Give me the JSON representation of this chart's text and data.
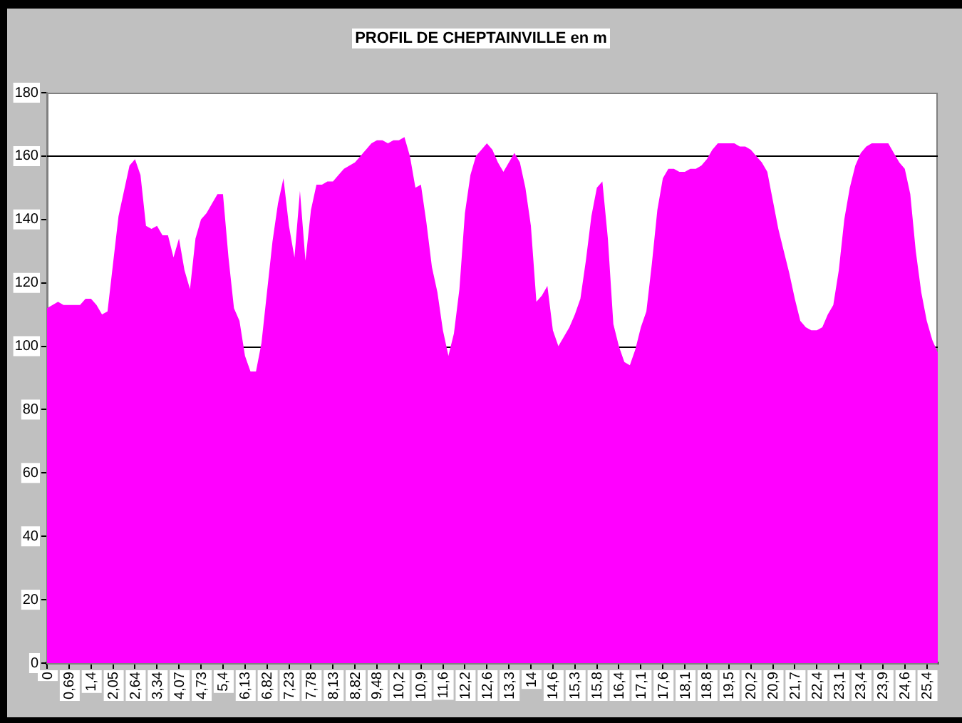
{
  "chart_data": {
    "type": "area",
    "title": "PROFIL DE CHEPTAINVILLE en m",
    "categories": [
      "0",
      null,
      null,
      null,
      "0,69",
      null,
      null,
      null,
      "1,4",
      null,
      null,
      null,
      "2,05",
      null,
      null,
      null,
      "2,64",
      null,
      null,
      null,
      "3,34",
      null,
      null,
      null,
      "4,07",
      null,
      null,
      null,
      "4,73",
      null,
      null,
      null,
      "5,4",
      null,
      null,
      null,
      "6,13",
      null,
      null,
      null,
      "6,82",
      null,
      null,
      null,
      "7,23",
      null,
      null,
      null,
      "7,78",
      null,
      null,
      null,
      "8,13",
      null,
      null,
      null,
      "8,82",
      null,
      null,
      null,
      "9,48",
      null,
      null,
      null,
      "10,2",
      null,
      null,
      null,
      "10,9",
      null,
      null,
      null,
      "11,6",
      null,
      null,
      null,
      "12,2",
      null,
      null,
      null,
      "12,6",
      null,
      null,
      null,
      "13,3",
      null,
      null,
      null,
      "14",
      null,
      null,
      null,
      "14,6",
      null,
      null,
      null,
      "15,3",
      null,
      null,
      null,
      "15,8",
      null,
      null,
      null,
      "16,4",
      null,
      null,
      null,
      "17,1",
      null,
      null,
      null,
      "17,6",
      null,
      null,
      null,
      "18,1",
      null,
      null,
      null,
      "18,8",
      null,
      null,
      null,
      "19,5",
      null,
      null,
      null,
      "20,2",
      null,
      null,
      null,
      "20,9",
      null,
      null,
      null,
      "21,7",
      null,
      null,
      null,
      "22,4",
      null,
      null,
      null,
      "23,1",
      null,
      null,
      null,
      "23,4",
      null,
      null,
      null,
      "23,9",
      null,
      null,
      null,
      "24,6",
      null,
      null,
      null,
      "25,4",
      null,
      null
    ],
    "values": [
      112,
      113,
      114,
      113,
      113,
      113,
      113,
      115,
      115,
      113,
      110,
      111,
      126,
      141,
      149,
      157,
      159,
      154,
      138,
      137,
      138,
      135,
      135,
      128,
      134,
      124,
      118,
      134,
      140,
      142,
      145,
      148,
      148,
      128,
      112,
      108,
      97,
      92,
      92,
      101,
      117,
      133,
      145,
      153,
      138,
      128,
      149,
      127,
      143,
      151,
      151,
      152,
      152,
      154,
      156,
      157,
      158,
      160,
      162,
      164,
      165,
      165,
      164,
      165,
      165,
      166,
      160,
      150,
      151,
      139,
      125,
      117,
      105,
      97,
      104,
      118,
      142,
      154,
      160,
      162,
      164,
      162,
      158,
      155,
      158,
      161,
      158,
      150,
      138,
      114,
      116,
      119,
      105,
      100,
      103,
      106,
      110,
      115,
      127,
      141,
      150,
      152,
      134,
      107,
      100,
      95,
      94,
      99,
      106,
      111,
      126,
      143,
      153,
      156,
      156,
      155,
      155,
      156,
      156,
      157,
      159,
      162,
      164,
      164,
      164,
      164,
      163,
      163,
      162,
      160,
      158,
      155,
      146,
      137,
      130,
      123,
      115,
      108,
      106,
      105,
      105,
      106,
      110,
      113,
      124,
      140,
      150,
      157,
      161,
      163,
      164,
      164,
      164,
      164,
      161,
      158,
      156,
      148,
      130,
      117,
      108,
      102,
      98
    ],
    "color": "#ff00ff",
    "ylim": [
      0,
      180
    ],
    "yticks": [
      0,
      20,
      40,
      60,
      80,
      100,
      120,
      140,
      160,
      180
    ],
    "ref_lines": [
      {
        "axis": "y",
        "value": 160,
        "color": "#000000"
      },
      {
        "axis": "y",
        "value": 100,
        "color": "#000000"
      }
    ]
  }
}
